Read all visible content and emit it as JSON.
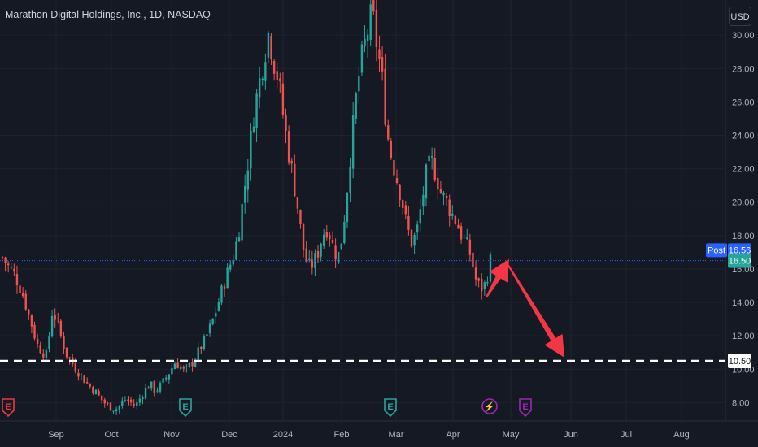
{
  "header": {
    "title": "Marathon Digital Holdings, Inc., 1D, NASDAQ",
    "currency": "USD"
  },
  "price_axis": {
    "ticks": [
      "8.00",
      "10.00",
      "12.00",
      "14.00",
      "16.00",
      "18.00",
      "20.00",
      "22.00",
      "24.00",
      "26.00",
      "28.00",
      "30.00"
    ],
    "post_label": "Post",
    "post_value": "16.56",
    "last_value": "16.50",
    "level_value": "10.50"
  },
  "time_axis": {
    "labels": [
      "Sep",
      "Oct",
      "Nov",
      "Dec",
      "2024",
      "Feb",
      "Mar",
      "Apr",
      "May",
      "Jun",
      "Jul",
      "Aug"
    ]
  },
  "colors": {
    "up": "#26a69a",
    "down": "#ef5350",
    "background": "#151924",
    "arrow": "#f23645",
    "event_green": "#26a69a",
    "event_red": "#f23645",
    "event_purple": "#9c27b0",
    "price_line": "#2962ff"
  },
  "events": [
    {
      "icon": "earnings-icon",
      "letter": "E",
      "color": "red"
    },
    {
      "icon": "earnings-icon",
      "letter": "E",
      "color": "green"
    },
    {
      "icon": "earnings-icon",
      "letter": "E",
      "color": "green"
    },
    {
      "icon": "halving-icon",
      "letter": "⚡",
      "color": "purple"
    },
    {
      "icon": "earnings-icon",
      "letter": "E",
      "color": "purple"
    }
  ],
  "chart_data": {
    "type": "candlestick",
    "symbol": "Marathon Digital Holdings, Inc.",
    "interval": "1D",
    "exchange": "NASDAQ",
    "ylim": [
      6.9,
      32.1
    ],
    "x_labels": [
      "Sep",
      "Oct",
      "Nov",
      "Dec",
      "2024",
      "Feb",
      "Mar",
      "Apr",
      "May",
      "Jun",
      "Jul",
      "Aug"
    ],
    "y_ticks": [
      8,
      10,
      12,
      14,
      16,
      18,
      20,
      22,
      24,
      26,
      28,
      30
    ],
    "last_price": 16.5,
    "post_market_price": 16.56,
    "horizontal_level": 10.5,
    "arrows": [
      {
        "from_price": 14.3,
        "to_price": 16.6
      },
      {
        "from_price": 16.3,
        "to_price": 10.7
      }
    ],
    "close_path": [
      16.7,
      16.2,
      15.9,
      15.3,
      14.6,
      13.6,
      12.6,
      11.5,
      11.1,
      10.8,
      13.4,
      13.0,
      11.8,
      10.9,
      10.4,
      10.0,
      9.6,
      9.2,
      8.9,
      8.6,
      8.2,
      7.9,
      7.7,
      7.6,
      7.9,
      8.2,
      8.0,
      7.8,
      8.3,
      8.8,
      9.1,
      8.7,
      9.0,
      9.4,
      9.9,
      10.4,
      10.2,
      9.8,
      10.2,
      10.6,
      11.2,
      11.7,
      12.4,
      13.2,
      14.2,
      15.2,
      16.1,
      16.9,
      18.4,
      20.6,
      22.8,
      25.3,
      27.0,
      28.6,
      30.2,
      28.5,
      27.3,
      25.1,
      23.1,
      21.4,
      19.5,
      17.3,
      16.1,
      16.3,
      17.0,
      18.1,
      18.5,
      17.4,
      16.6,
      18.1,
      21.0,
      24.2,
      26.9,
      28.8,
      30.1,
      31.4,
      29.3,
      27.5,
      24.2,
      22.6,
      21.4,
      20.2,
      18.6,
      17.6,
      18.1,
      19.9,
      21.7,
      22.5,
      21.6,
      20.5,
      20.1,
      19.4,
      18.9,
      18.1,
      17.6,
      16.8,
      15.4,
      14.8,
      15.1,
      16.5
    ]
  }
}
